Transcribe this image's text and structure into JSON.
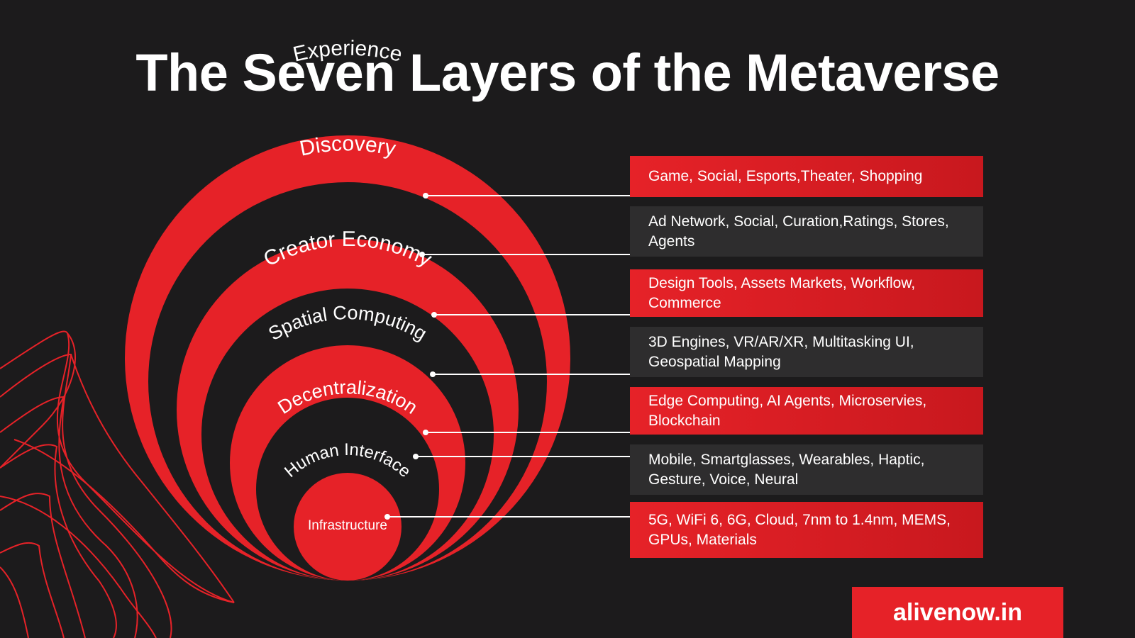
{
  "title": "The Seven Layers of the Metaverse",
  "colors": {
    "red": "#e62228",
    "dark": "#1c1b1c",
    "panel": "#2e2d2e",
    "text": "#ffffff"
  },
  "layers": [
    {
      "name": "Experience",
      "description": "Game, Social, Esports,Theater, Shopping"
    },
    {
      "name": "Discovery",
      "description": "Ad Network, Social, Curation,Ratings, Stores, Agents"
    },
    {
      "name": "Creator Economy",
      "description": "Design Tools, Assets Markets, Workflow, Commerce"
    },
    {
      "name": "Spatial Computing",
      "description": "3D Engines, VR/AR/XR, Multitasking UI, Geospatial Mapping"
    },
    {
      "name": "Decentralization",
      "description": "Edge Computing, AI Agents, Microservies, Blockchain"
    },
    {
      "name": "Human Interface",
      "description": "Mobile, Smartglasses, Wearables, Haptic, Gesture, Voice, Neural"
    },
    {
      "name": "Infrastructure",
      "description": "5G, WiFi 6, 6G, Cloud, 7nm to 1.4nm, MEMS, GPUs, Materials"
    }
  ],
  "brand": "alivenow.in"
}
